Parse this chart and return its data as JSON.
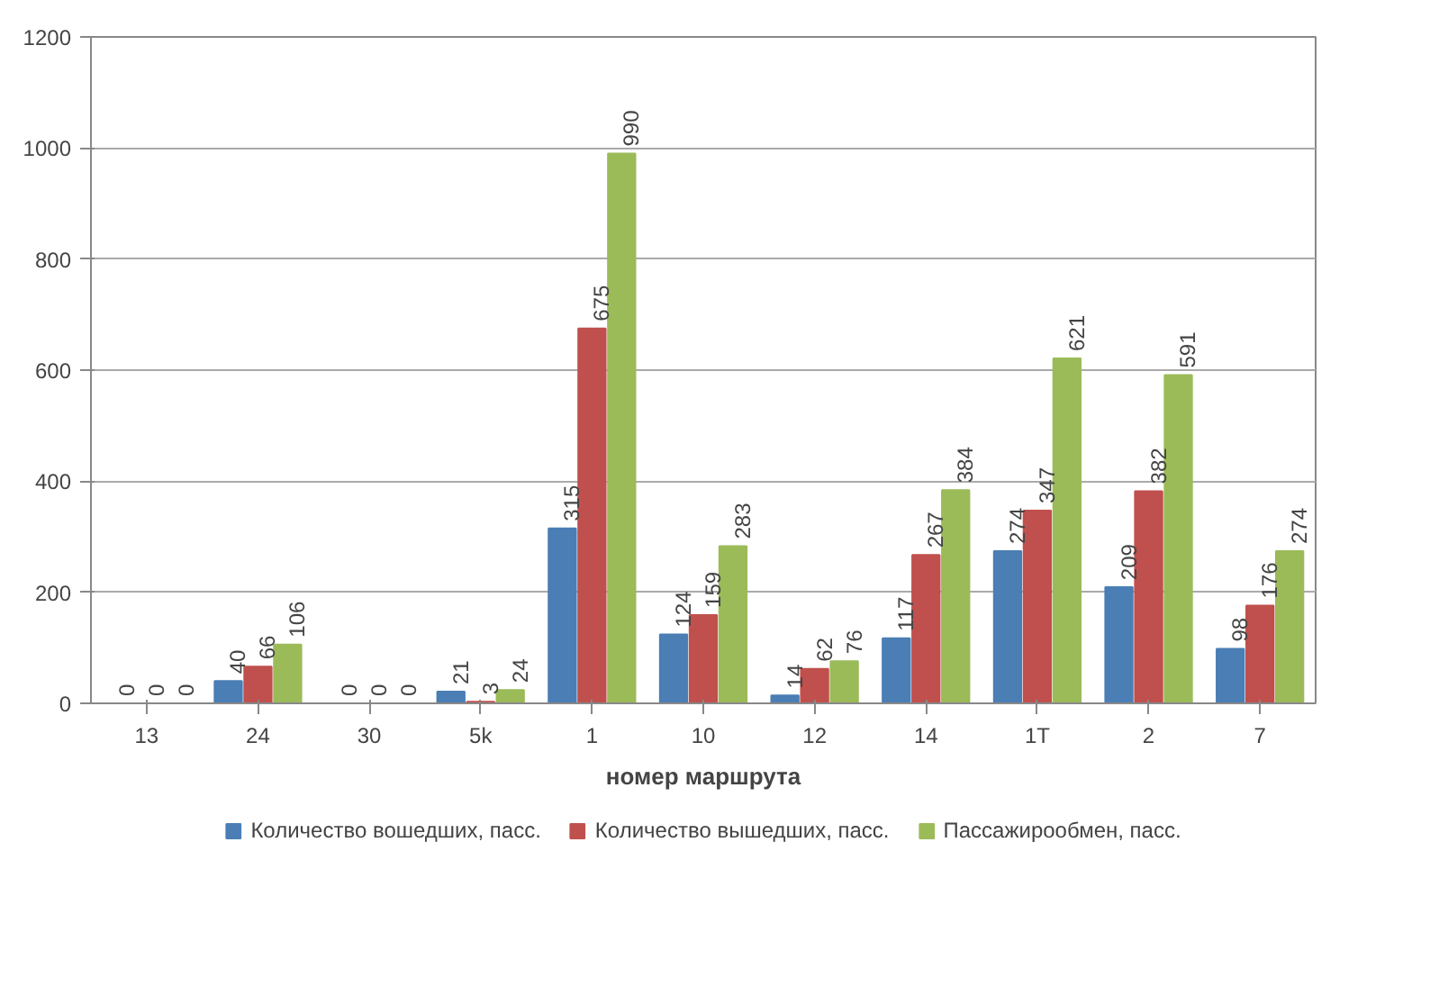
{
  "chart_data": {
    "type": "bar",
    "xlabel": "номер маршрута",
    "categories": [
      "13",
      "24",
      "30",
      "5k",
      "1",
      "10",
      "12",
      "14",
      "1T",
      "2",
      "7"
    ],
    "series": [
      {
        "name": "Количество вошедших, пасс.",
        "color": "#4a7eb5",
        "values": [
          0,
          40,
          0,
          21,
          315,
          124,
          14,
          117,
          274,
          209,
          98
        ]
      },
      {
        "name": "Количество вышедших, пасс.",
        "color": "#c0504d",
        "values": [
          0,
          66,
          0,
          3,
          675,
          159,
          62,
          267,
          347,
          382,
          176
        ]
      },
      {
        "name": "Пассажирообмен, пасс.",
        "color": "#9bbb59",
        "values": [
          0,
          106,
          0,
          24,
          990,
          283,
          76,
          384,
          621,
          591,
          274
        ]
      }
    ],
    "ylim": [
      0,
      1200
    ],
    "yticks": [
      0,
      200,
      400,
      600,
      800,
      1000,
      1200
    ],
    "grid": "y",
    "legend": "bottom",
    "data_labels": true
  }
}
